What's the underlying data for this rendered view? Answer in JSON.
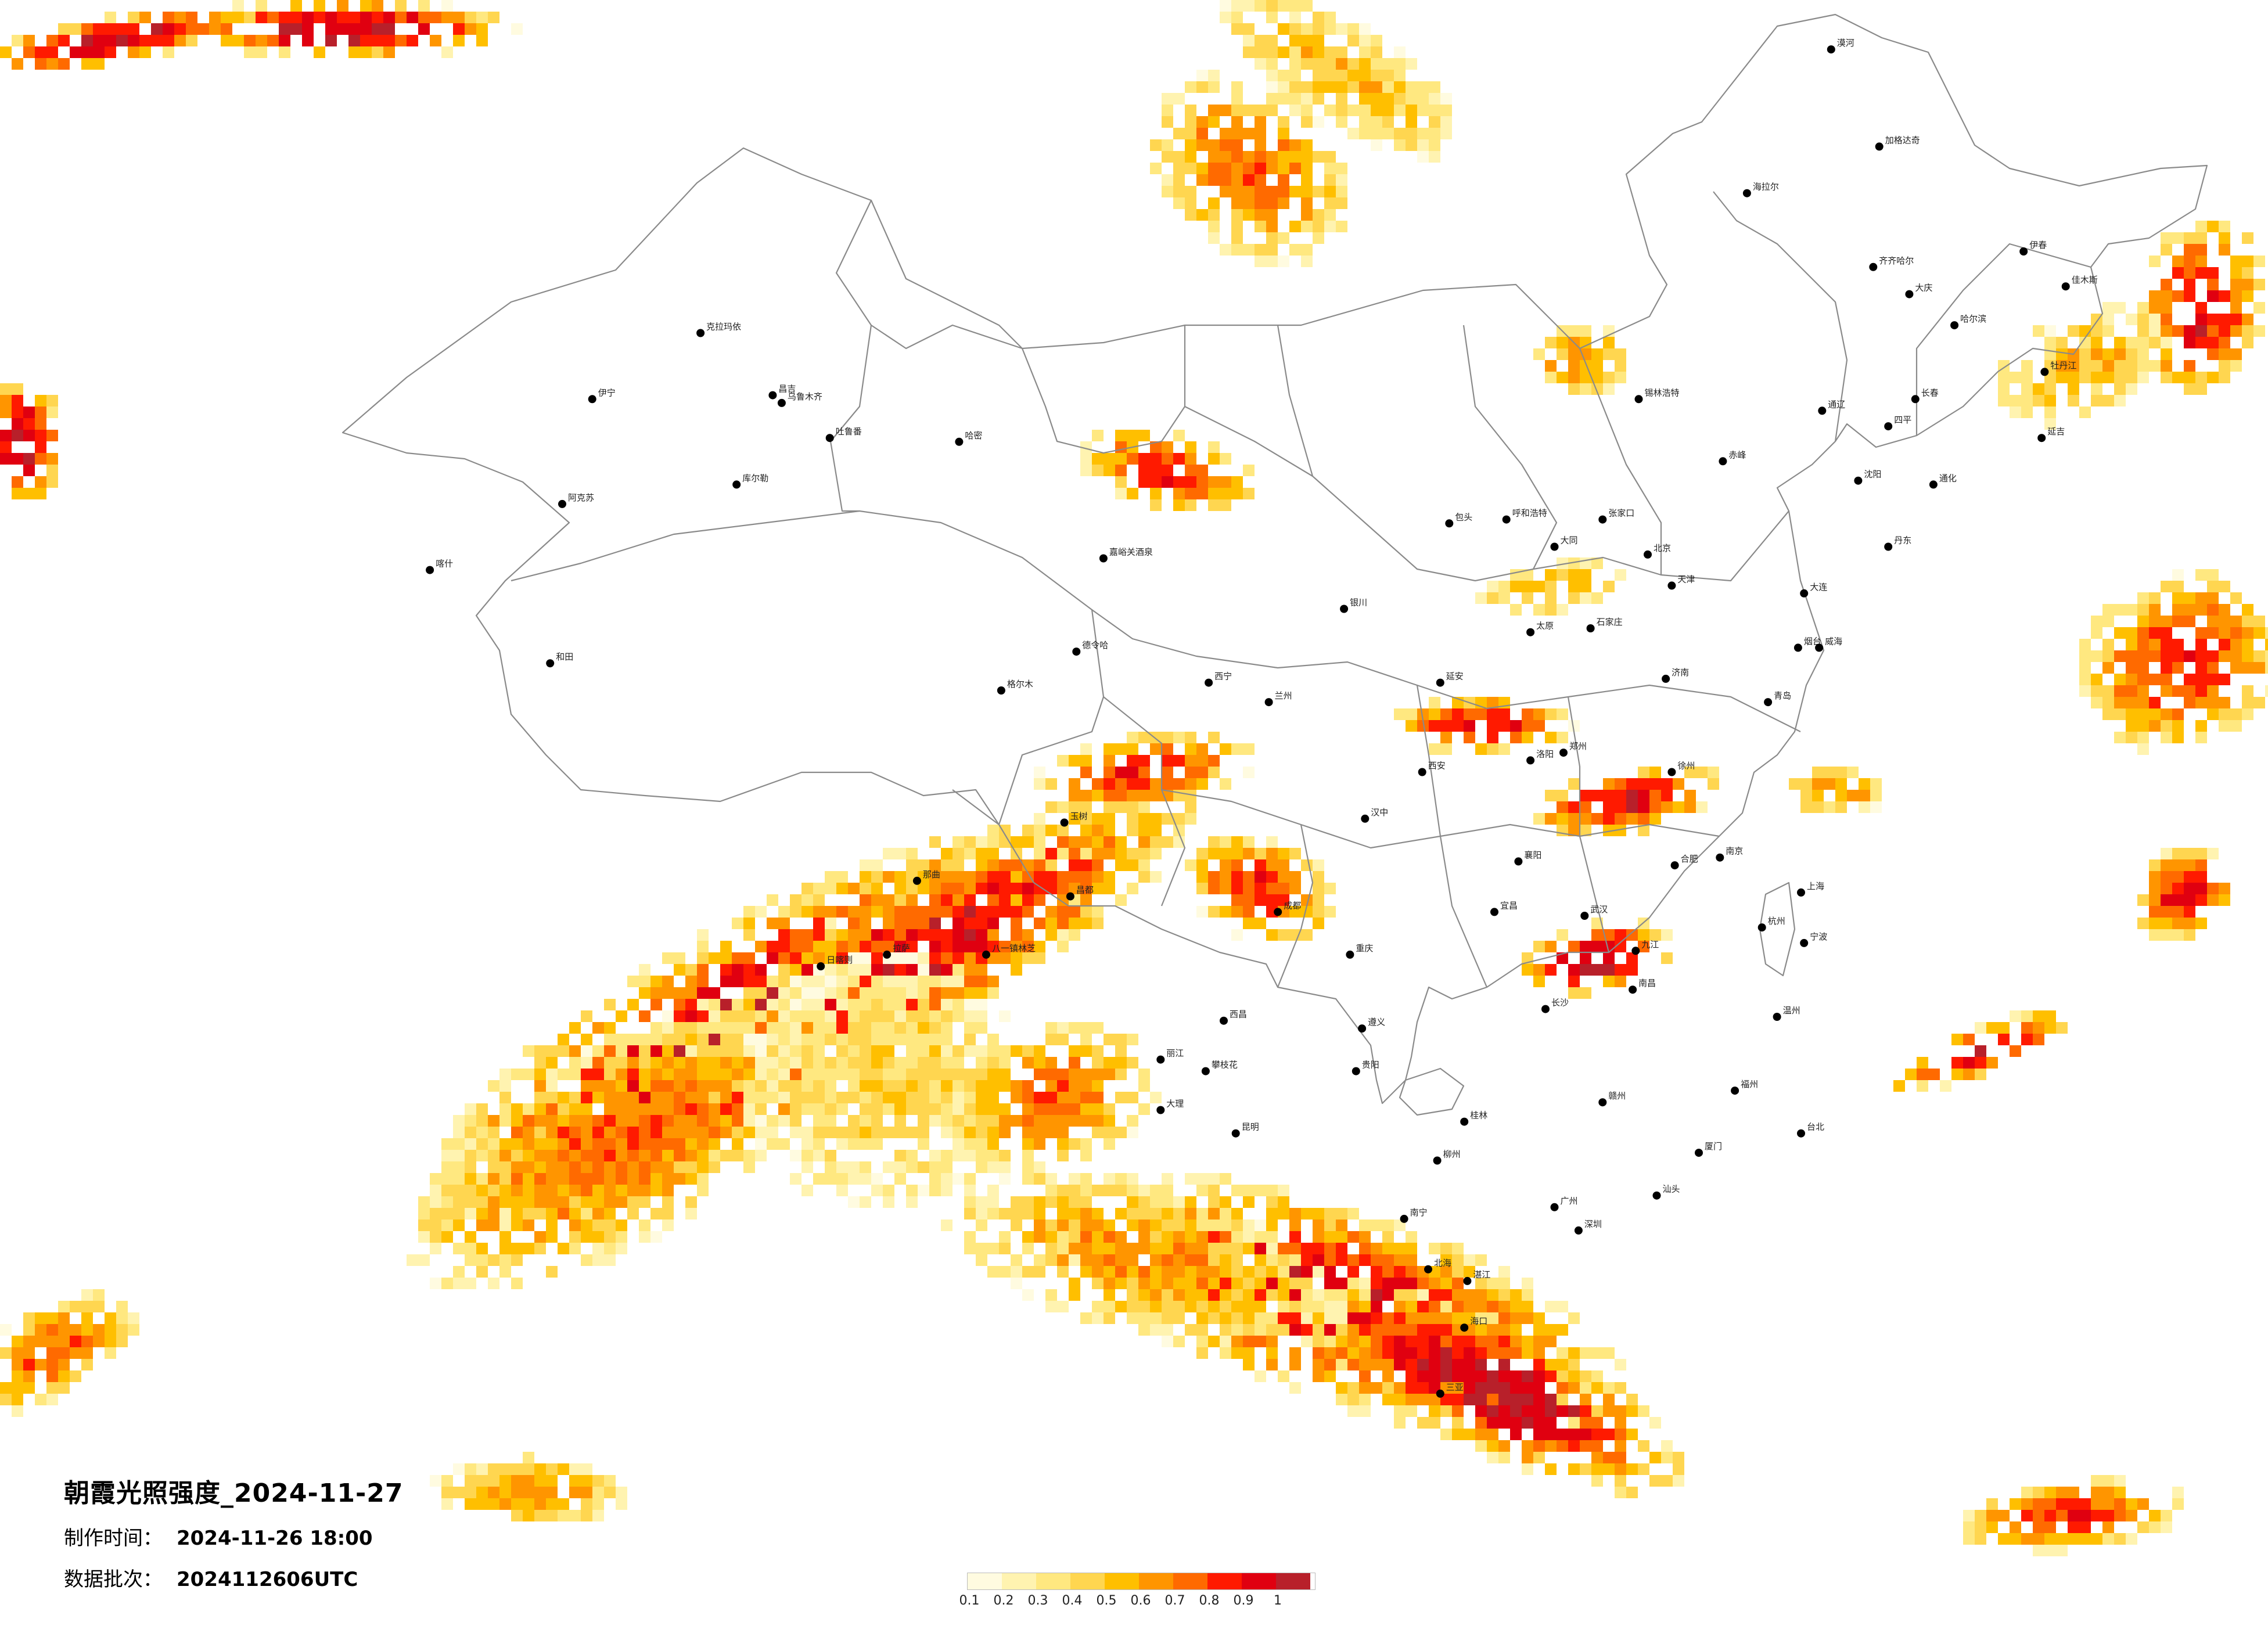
{
  "title": "朝霞光照强度_2024-11-27",
  "made_time": {
    "label": "制作时间：",
    "value": "2024-11-26 18:00"
  },
  "data_batch": {
    "label": "数据批次：",
    "value": "2024112606UTC"
  },
  "legend": {
    "ticks": [
      "0.1",
      "0.2",
      "0.3",
      "0.4",
      "0.5",
      "0.6",
      "0.7",
      "0.8",
      "0.9",
      "1"
    ],
    "colors": [
      "#fffbe0",
      "#fff3b0",
      "#ffe880",
      "#ffd650",
      "#ffbf00",
      "#ff9500",
      "#ff6a00",
      "#ff1a00",
      "#e00010",
      "#b8202a"
    ]
  },
  "map": {
    "projection_bounds": {
      "lon_min": 68,
      "lon_max": 142,
      "lat_min": 8,
      "lat_max": 55
    },
    "cities": [
      {
        "name": "乌鲁木齐",
        "lon": 87.6,
        "lat": 43.8
      },
      {
        "name": "克拉玛依",
        "lon": 84.9,
        "lat": 45.6
      },
      {
        "name": "伊宁",
        "lon": 81.3,
        "lat": 43.9
      },
      {
        "name": "昌吉",
        "lon": 87.3,
        "lat": 44.0
      },
      {
        "name": "吐鲁番",
        "lon": 89.2,
        "lat": 42.9
      },
      {
        "name": "库尔勒",
        "lon": 86.1,
        "lat": 41.7
      },
      {
        "name": "阿克苏",
        "lon": 80.3,
        "lat": 41.2
      },
      {
        "name": "喀什",
        "lon": 75.9,
        "lat": 39.5
      },
      {
        "name": "和田",
        "lon": 79.9,
        "lat": 37.1
      },
      {
        "name": "哈密",
        "lon": 93.5,
        "lat": 42.8
      },
      {
        "name": "嘉峪关酒泉",
        "lon": 98.3,
        "lat": 39.8
      },
      {
        "name": "德令哈",
        "lon": 97.4,
        "lat": 37.4
      },
      {
        "name": "西宁",
        "lon": 101.8,
        "lat": 36.6
      },
      {
        "name": "兰州",
        "lon": 103.8,
        "lat": 36.1
      },
      {
        "name": "银川",
        "lon": 106.3,
        "lat": 38.5
      },
      {
        "name": "呼和浩特",
        "lon": 111.7,
        "lat": 40.8
      },
      {
        "name": "包头",
        "lon": 109.8,
        "lat": 40.7
      },
      {
        "name": "格尔木",
        "lon": 94.9,
        "lat": 36.4
      },
      {
        "name": "玉树",
        "lon": 97.0,
        "lat": 33.0
      },
      {
        "name": "那曲",
        "lon": 92.1,
        "lat": 31.5
      },
      {
        "name": "拉萨",
        "lon": 91.1,
        "lat": 29.6
      },
      {
        "name": "日喀则",
        "lon": 88.9,
        "lat": 29.3
      },
      {
        "name": "八一镇林芝",
        "lon": 94.4,
        "lat": 29.6
      },
      {
        "name": "昌都",
        "lon": 97.2,
        "lat": 31.1
      },
      {
        "name": "成都",
        "lon": 104.1,
        "lat": 30.7
      },
      {
        "name": "重庆",
        "lon": 106.5,
        "lat": 29.6
      },
      {
        "name": "贵阳",
        "lon": 106.7,
        "lat": 26.6
      },
      {
        "name": "昆明",
        "lon": 102.7,
        "lat": 25.0
      },
      {
        "name": "南宁",
        "lon": 108.3,
        "lat": 22.8
      },
      {
        "name": "海口",
        "lon": 110.3,
        "lat": 20.0
      },
      {
        "name": "广州",
        "lon": 113.3,
        "lat": 23.1
      },
      {
        "name": "深圳",
        "lon": 114.1,
        "lat": 22.5
      },
      {
        "name": "福州",
        "lon": 119.3,
        "lat": 26.1
      },
      {
        "name": "台北",
        "lon": 121.5,
        "lat": 25.0
      },
      {
        "name": "长沙",
        "lon": 113.0,
        "lat": 28.2
      },
      {
        "name": "南昌",
        "lon": 115.9,
        "lat": 28.7
      },
      {
        "name": "武汉",
        "lon": 114.3,
        "lat": 30.6
      },
      {
        "name": "合肥",
        "lon": 117.3,
        "lat": 31.9
      },
      {
        "name": "杭州",
        "lon": 120.2,
        "lat": 30.3
      },
      {
        "name": "上海",
        "lon": 121.5,
        "lat": 31.2
      },
      {
        "name": "南京",
        "lon": 118.8,
        "lat": 32.1
      },
      {
        "name": "郑州",
        "lon": 113.6,
        "lat": 34.8
      },
      {
        "name": "西安",
        "lon": 108.9,
        "lat": 34.3
      },
      {
        "name": "太原",
        "lon": 112.5,
        "lat": 37.9
      },
      {
        "name": "石家庄",
        "lon": 114.5,
        "lat": 38.0
      },
      {
        "name": "北京",
        "lon": 116.4,
        "lat": 39.9
      },
      {
        "name": "天津",
        "lon": 117.2,
        "lat": 39.1
      },
      {
        "name": "济南",
        "lon": 117.0,
        "lat": 36.7
      },
      {
        "name": "青岛",
        "lon": 120.4,
        "lat": 36.1
      },
      {
        "name": "沈阳",
        "lon": 123.4,
        "lat": 41.8
      },
      {
        "name": "长春",
        "lon": 125.3,
        "lat": 43.9
      },
      {
        "name": "哈尔滨",
        "lon": 126.6,
        "lat": 45.8
      },
      {
        "name": "齐齐哈尔",
        "lon": 123.9,
        "lat": 47.3
      },
      {
        "name": "大庆",
        "lon": 125.1,
        "lat": 46.6
      },
      {
        "name": "海拉尔",
        "lon": 119.7,
        "lat": 49.2
      },
      {
        "name": "加格达奇",
        "lon": 124.1,
        "lat": 50.4
      },
      {
        "name": "漠河",
        "lon": 122.5,
        "lat": 52.9
      },
      {
        "name": "伊春",
        "lon": 128.9,
        "lat": 47.7
      },
      {
        "name": "佳木斯",
        "lon": 130.3,
        "lat": 46.8
      },
      {
        "name": "牡丹江",
        "lon": 129.6,
        "lat": 44.6
      },
      {
        "name": "大连",
        "lon": 121.6,
        "lat": 38.9
      },
      {
        "name": "锡林浩特",
        "lon": 116.1,
        "lat": 43.9
      },
      {
        "name": "张家口",
        "lon": 114.9,
        "lat": 40.8
      },
      {
        "name": "大同",
        "lon": 113.3,
        "lat": 40.1
      },
      {
        "name": "延安",
        "lon": 109.5,
        "lat": 36.6
      },
      {
        "name": "汉中",
        "lon": 107.0,
        "lat": 33.1
      },
      {
        "name": "宜昌",
        "lon": 111.3,
        "lat": 30.7
      },
      {
        "name": "赣州",
        "lon": 114.9,
        "lat": 25.8
      },
      {
        "name": "厦门",
        "lon": 118.1,
        "lat": 24.5
      },
      {
        "name": "汕头",
        "lon": 116.7,
        "lat": 23.4
      },
      {
        "name": "桂林",
        "lon": 110.3,
        "lat": 25.3
      },
      {
        "name": "湛江",
        "lon": 110.4,
        "lat": 21.2
      },
      {
        "name": "温州",
        "lon": 120.7,
        "lat": 28.0
      },
      {
        "name": "宁波",
        "lon": 121.6,
        "lat": 29.9
      },
      {
        "name": "徐州",
        "lon": 117.2,
        "lat": 34.3
      },
      {
        "name": "洛阳",
        "lon": 112.5,
        "lat": 34.6
      },
      {
        "name": "襄阳",
        "lon": 112.1,
        "lat": 32.0
      },
      {
        "name": "九江",
        "lon": 116.0,
        "lat": 29.7
      },
      {
        "name": "烟台",
        "lon": 121.4,
        "lat": 37.5
      },
      {
        "name": "威海",
        "lon": 122.1,
        "lat": 37.5
      },
      {
        "name": "丹东",
        "lon": 124.4,
        "lat": 40.1
      },
      {
        "name": "通化",
        "lon": 125.9,
        "lat": 41.7
      },
      {
        "name": "延吉",
        "lon": 129.5,
        "lat": 42.9
      },
      {
        "name": "四平",
        "lon": 124.4,
        "lat": 43.2
      },
      {
        "name": "赤峰",
        "lon": 118.9,
        "lat": 42.3
      },
      {
        "name": "通辽",
        "lon": 122.2,
        "lat": 43.6
      },
      {
        "name": "大理",
        "lon": 100.2,
        "lat": 25.6
      },
      {
        "name": "丽江",
        "lon": 100.2,
        "lat": 26.9
      },
      {
        "name": "西昌",
        "lon": 102.3,
        "lat": 27.9
      },
      {
        "name": "攀枝花",
        "lon": 101.7,
        "lat": 26.6
      },
      {
        "name": "遵义",
        "lon": 106.9,
        "lat": 27.7
      },
      {
        "name": "柳州",
        "lon": 109.4,
        "lat": 24.3
      },
      {
        "name": "北海",
        "lon": 109.1,
        "lat": 21.5
      },
      {
        "name": "三亚",
        "lon": 109.5,
        "lat": 18.3
      }
    ]
  }
}
